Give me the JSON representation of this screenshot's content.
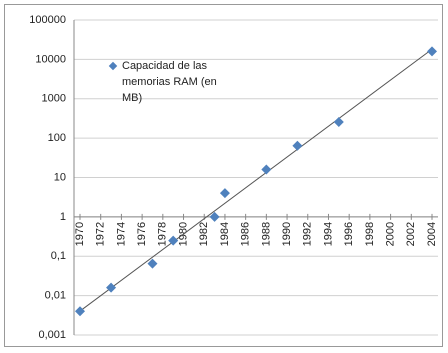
{
  "chart_data": {
    "type": "scatter",
    "series": [
      {
        "name": "Capacidad de las memorias RAM (en MB)",
        "color": "#4f81bd",
        "x": [
          1970,
          1973,
          1977,
          1979,
          1983,
          1984,
          1988,
          1991,
          1995,
          2004
        ],
        "values": [
          0.004,
          0.016,
          0.065,
          0.25,
          1,
          4,
          16,
          64,
          256,
          16000
        ]
      }
    ],
    "xlim": [
      1970,
      2004
    ],
    "xticks": [
      1970,
      1972,
      1974,
      1976,
      1978,
      1980,
      1982,
      1984,
      1986,
      1988,
      1990,
      1992,
      1994,
      1996,
      1998,
      2000,
      2002,
      2004
    ],
    "ylim": [
      0.001,
      100000
    ],
    "yticks": [
      {
        "value": 0.001,
        "label": "0,001"
      },
      {
        "value": 0.01,
        "label": "0,01"
      },
      {
        "value": 0.1,
        "label": "0,1"
      },
      1,
      10,
      100,
      1000,
      10000,
      100000
    ],
    "y_log": true,
    "grid": true,
    "x_axis_at": 1,
    "trendline": "exponential",
    "legend": "top-left"
  }
}
